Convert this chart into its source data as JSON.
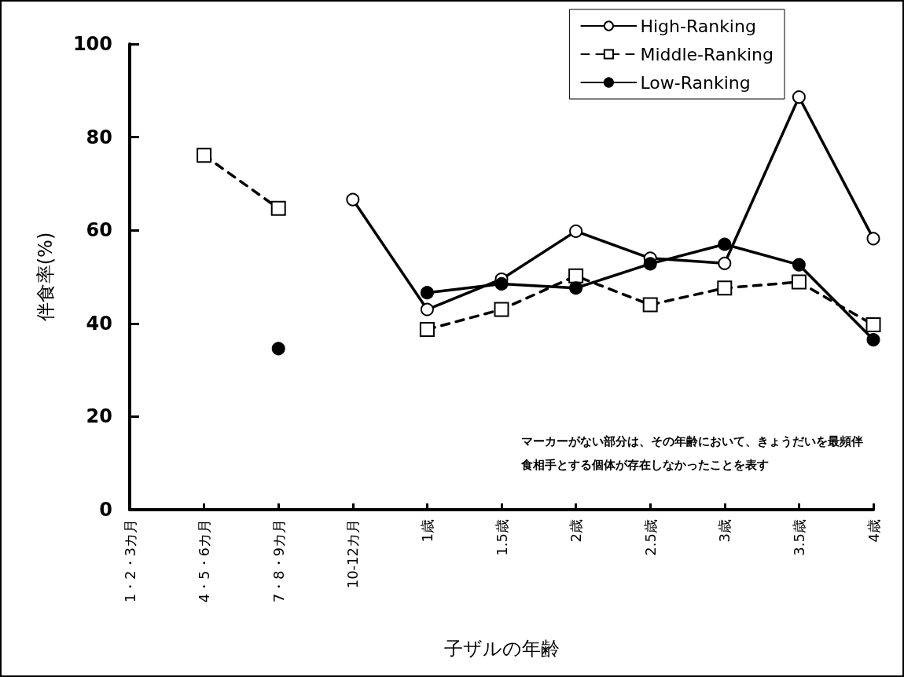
{
  "chart_data": {
    "type": "line",
    "ylabel": "伴食率(%)",
    "xlabel": "子ザルの年齢",
    "categories": [
      "1・2・3カ月",
      "4・5・6カ月",
      "7・8・9カ月",
      "10-12カ月",
      "1歳",
      "1.5歳",
      "2歳",
      "2.5歳",
      "3歳",
      "3.5歳",
      "4歳"
    ],
    "series": [
      {
        "name": "High-Ranking",
        "color": "#000000",
        "marker": "circle",
        "colors": [
          null,
          null,
          null,
          "#ffffff",
          "#ffffff",
          "#ffffff",
          "#ffffff",
          "#ffffff",
          "#ffffff",
          "#ffffff",
          "#ffffff"
        ],
        "line_style": "solid",
        "values": [
          null,
          null,
          null,
          66.6,
          43,
          49.5,
          59.8,
          54,
          52.9,
          88.6,
          58.2
        ]
      },
      {
        "name": "Middle-Ranking",
        "color": "#000000",
        "marker": "square",
        "colors": [
          null,
          "#ffffff",
          "#ffffff",
          null,
          "#ffffff",
          "#ffffff",
          "#ffffff",
          "#ffffff",
          "#ffffff",
          "#ffffff",
          "#ffffff"
        ],
        "line_style": "dashed",
        "values": [
          null,
          76.1,
          64.7,
          null,
          38.7,
          43,
          50.2,
          44,
          47.6,
          48.9,
          39.7
        ]
      },
      {
        "name": "Low-Ranking",
        "color": "#000000",
        "marker": "circle",
        "line_style": "solid",
        "values": [
          null,
          null,
          34.6,
          null,
          46.6,
          48.5,
          47.6,
          52.8,
          57,
          52.6,
          36.5
        ]
      }
    ],
    "ylim": [
      0,
      100
    ],
    "yticks": [
      0,
      20,
      40,
      60,
      80,
      100
    ],
    "grid": false,
    "legend": "top right",
    "annotations": [
      "マーカーがない部分は、その年齢において、きょうだいを最頻伴食相手とする個体が存在しなかったことを表す"
    ]
  }
}
